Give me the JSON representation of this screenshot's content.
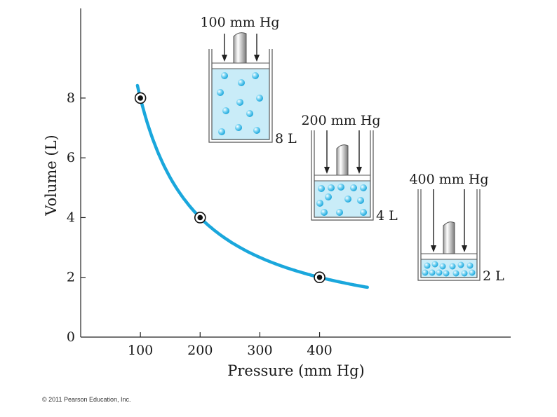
{
  "chart_data": {
    "type": "line",
    "xlabel": "Pressure (mm Hg)",
    "ylabel": "Volume (L)",
    "x_ticks": [
      100,
      200,
      300,
      400
    ],
    "y_ticks": [
      0,
      2,
      4,
      6,
      8
    ],
    "xlim": [
      0,
      720
    ],
    "ylim": [
      0,
      11
    ],
    "curve": {
      "constant": 800,
      "x_start": 95,
      "x_end": 480,
      "color": "#1aa7dc"
    },
    "points": [
      {
        "x": 100,
        "y": 8
      },
      {
        "x": 200,
        "y": 4
      },
      {
        "x": 400,
        "y": 2
      }
    ],
    "grid": false,
    "legend": "none"
  },
  "cylinders": [
    {
      "pressure_label": "100 mm Hg",
      "volume_label": "8 L"
    },
    {
      "pressure_label": "200 mm Hg",
      "volume_label": "4 L"
    },
    {
      "pressure_label": "400 mm Hg",
      "volume_label": "2 L"
    }
  ],
  "colors": {
    "gas_fill": "#c9ecf8",
    "molecule": "#3cbdec",
    "curve": "#1aa7dc"
  },
  "copyright": "© 2011 Pearson Education, Inc."
}
